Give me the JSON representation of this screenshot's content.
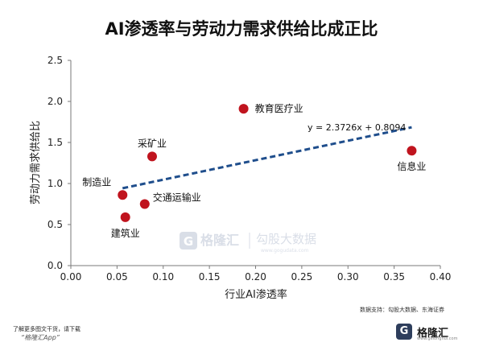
{
  "page": {
    "title": "AI渗透率与劳动力需求供给比成正比",
    "source_text": "数据支持：勾股大数据、东海证券",
    "promo_line1": "了解更多图文干货，请下载",
    "promo_line2": "“格隆汇App”",
    "brand_name": "格隆汇",
    "brand_sub": "www.gelonghui.com",
    "watermark_brand": "格隆汇",
    "watermark_sub": "勾股大数据",
    "watermark_url": "www.gogudata.com"
  },
  "chart_data": {
    "type": "scatter",
    "title": "AI渗透率与劳动力需求供给比成正比",
    "xlabel": "行业AI渗透率",
    "ylabel": "劳动力需求供给比",
    "xlim": [
      0.0,
      0.4
    ],
    "ylim": [
      0.0,
      2.5
    ],
    "xticks": [
      "0.00",
      "0.05",
      "0.10",
      "0.15",
      "0.20",
      "0.25",
      "0.30",
      "0.35",
      "0.40"
    ],
    "yticks": [
      "0.0",
      "0.5",
      "1.0",
      "1.5",
      "2.0",
      "2.5"
    ],
    "grid": false,
    "points": [
      {
        "label": "教育医疗业",
        "x": 0.187,
        "y": 1.91
      },
      {
        "label": "信息业",
        "x": 0.369,
        "y": 1.4
      },
      {
        "label": "采矿业",
        "x": 0.088,
        "y": 1.33
      },
      {
        "label": "制造业",
        "x": 0.056,
        "y": 0.86
      },
      {
        "label": "交通运输业",
        "x": 0.08,
        "y": 0.75
      },
      {
        "label": "建筑业",
        "x": 0.059,
        "y": 0.59
      }
    ],
    "trendline": {
      "equation": "y = 2.3726x + 0.8094",
      "slope": 2.3726,
      "intercept": 0.8094,
      "x_range": [
        0.056,
        0.369
      ],
      "style": "dashed"
    },
    "colors": {
      "point": "#c0141e",
      "trend": "#1f4e8c",
      "axis": "#777777"
    }
  }
}
